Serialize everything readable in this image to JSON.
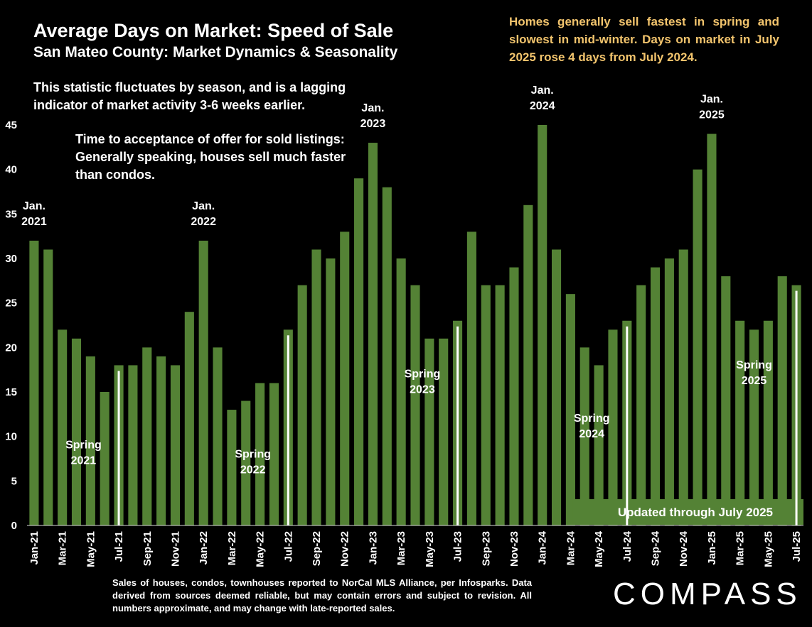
{
  "title": "Average Days on Market:  Speed of Sale",
  "subtitle": "San Mateo County: Market Dynamics & Seasonality",
  "callout": "Homes generally sell fastest in spring and slowest in mid-winter. Days on market in July 2025 rose 4 days from July 2024.",
  "note_lagging": "This statistic fluctuates by season, and is a lagging indicator of market activity 3-6 weeks earlier.",
  "note_definition": "Time to acceptance of offer for sold listings: Generally speaking, houses sell much faster than condos.",
  "updated_banner": "Updated through July 2025",
  "footer": "Sales of houses, condos, townhouses reported to NorCal MLS Alliance, per Infosparks. Data derived from sources deemed reliable, but may contain errors and subject to revision. All numbers approximate, and may change with late-reported sales.",
  "logo": "COMPASS",
  "chart_data": {
    "type": "bar",
    "ylim": [
      0,
      45
    ],
    "yticks": [
      0,
      5,
      10,
      15,
      20,
      25,
      30,
      35,
      40,
      45
    ],
    "bar_color": "#548235",
    "marker_color": "#ffffff",
    "banner_color": "#548235",
    "callout_color": "#f2c46d",
    "categories": [
      "Jan-21",
      "Feb-21",
      "Mar-21",
      "Apr-21",
      "May-21",
      "Jun-21",
      "Jul-21",
      "Aug-21",
      "Sep-21",
      "Oct-21",
      "Nov-21",
      "Dec-21",
      "Jan-22",
      "Feb-22",
      "Mar-22",
      "Apr-22",
      "May-22",
      "Jun-22",
      "Jul-22",
      "Aug-22",
      "Sep-22",
      "Oct-22",
      "Nov-22",
      "Dec-22",
      "Jan-23",
      "Feb-23",
      "Mar-23",
      "Apr-23",
      "May-23",
      "Jun-23",
      "Jul-23",
      "Aug-23",
      "Sep-23",
      "Oct-23",
      "Nov-23",
      "Dec-23",
      "Jan-24",
      "Feb-24",
      "Mar-24",
      "Apr-24",
      "May-24",
      "Jun-24",
      "Jul-24",
      "Aug-24",
      "Sep-24",
      "Oct-24",
      "Nov-24",
      "Dec-24",
      "Jan-25",
      "Feb-25",
      "Mar-25",
      "Apr-25",
      "May-25",
      "Jun-25",
      "Jul-25"
    ],
    "values": [
      32,
      31,
      22,
      21,
      19,
      15,
      18,
      18,
      20,
      19,
      18,
      24,
      32,
      20,
      13,
      14,
      16,
      16,
      22,
      27,
      31,
      30,
      33,
      39,
      43,
      38,
      30,
      27,
      21,
      21,
      23,
      33,
      27,
      27,
      29,
      36,
      45,
      31,
      26,
      20,
      18,
      22,
      23,
      27,
      29,
      30,
      31,
      40,
      44,
      28,
      23,
      22,
      23,
      28,
      27
    ],
    "tick_labels": [
      "Jan-21",
      "",
      "Mar-21",
      "",
      "May-21",
      "",
      "Jul-21",
      "",
      "Sep-21",
      "",
      "Nov-21",
      "",
      "Jan-22",
      "",
      "Mar-22",
      "",
      "May-22",
      "",
      "Jul-22",
      "",
      "Sep-22",
      "",
      "Nov-22",
      "",
      "Jan-23",
      "",
      "Mar-23",
      "",
      "May-23",
      "",
      "Jul-23",
      "",
      "Sep-23",
      "",
      "Nov-23",
      "",
      "Jan-24",
      "",
      "Mar-24",
      "",
      "May-24",
      "",
      "Jul-24",
      "",
      "Sep-24",
      "",
      "Nov-24",
      "",
      "Jan-25",
      "",
      "Mar-25",
      "",
      "May-25",
      "",
      "Jul-25"
    ],
    "july_markers": [
      6,
      18,
      30,
      42,
      54
    ],
    "annotations": [
      {
        "index": 0,
        "lines": [
          "Jan.",
          "2021"
        ],
        "value": 32
      },
      {
        "index": 12,
        "lines": [
          "Jan.",
          "2022"
        ],
        "value": 32
      },
      {
        "index": 24,
        "lines": [
          "Jan.",
          "2023"
        ],
        "value": 43
      },
      {
        "index": 36,
        "lines": [
          "Jan.",
          "2024"
        ],
        "value": 45
      },
      {
        "index": 48,
        "lines": [
          "Jan.",
          "2025"
        ],
        "value": 44
      },
      {
        "index": 3.5,
        "lines": [
          "Spring",
          "2021"
        ],
        "value": 8
      },
      {
        "index": 15.5,
        "lines": [
          "Spring",
          "2022"
        ],
        "value": 7
      },
      {
        "index": 27.5,
        "lines": [
          "Spring",
          "2023"
        ],
        "value": 16
      },
      {
        "index": 39.5,
        "lines": [
          "Spring",
          "2024"
        ],
        "value": 11
      },
      {
        "index": 51,
        "lines": [
          "Spring",
          "2025"
        ],
        "value": 17
      }
    ]
  }
}
